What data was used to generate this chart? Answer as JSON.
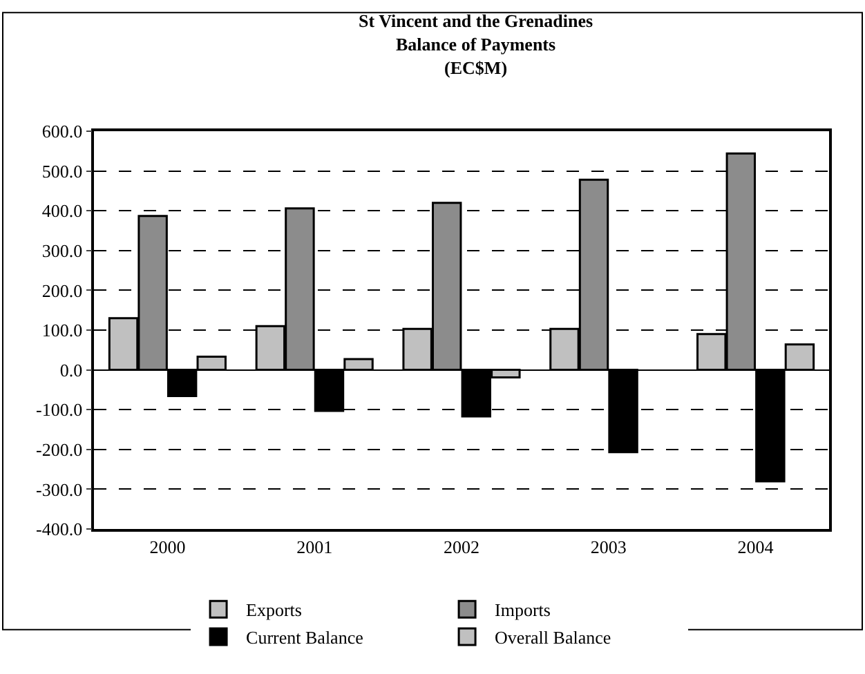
{
  "chart_data": {
    "type": "bar",
    "title": "St Vincent and the Grenadines\nBalance of Payments\n(EC$M)",
    "categories": [
      "2000",
      "2001",
      "2002",
      "2003",
      "2004"
    ],
    "series": [
      {
        "name": "Exports",
        "color": "#c0c0c0",
        "values": [
          130,
          110,
          103,
          103,
          90
        ]
      },
      {
        "name": "Imports",
        "color": "#8c8c8c",
        "values": [
          387,
          406,
          420,
          478,
          544
        ]
      },
      {
        "name": "Current Balance",
        "color": "#000000",
        "values": [
          -66,
          -103,
          -117,
          -207,
          -280
        ]
      },
      {
        "name": "Overall Balance",
        "color": "#c0c0c0",
        "values": [
          33,
          27,
          -19,
          null,
          64
        ]
      }
    ],
    "ylim": [
      -400,
      600
    ],
    "yticks": [
      {
        "value": -400,
        "label": "-400.0"
      },
      {
        "value": -300,
        "label": "-300.0"
      },
      {
        "value": -200,
        "label": "-200.0"
      },
      {
        "value": -100,
        "label": "-100.0"
      },
      {
        "value": 0,
        "label": "0.0"
      },
      {
        "value": 100,
        "label": "100.0"
      },
      {
        "value": 200,
        "label": "200.0"
      },
      {
        "value": 300,
        "label": "300.0"
      },
      {
        "value": 400,
        "label": "400.0"
      },
      {
        "value": 500,
        "label": "500.0"
      },
      {
        "value": 600,
        "label": "600.0"
      }
    ],
    "grid": "y",
    "legend": "bottom"
  }
}
